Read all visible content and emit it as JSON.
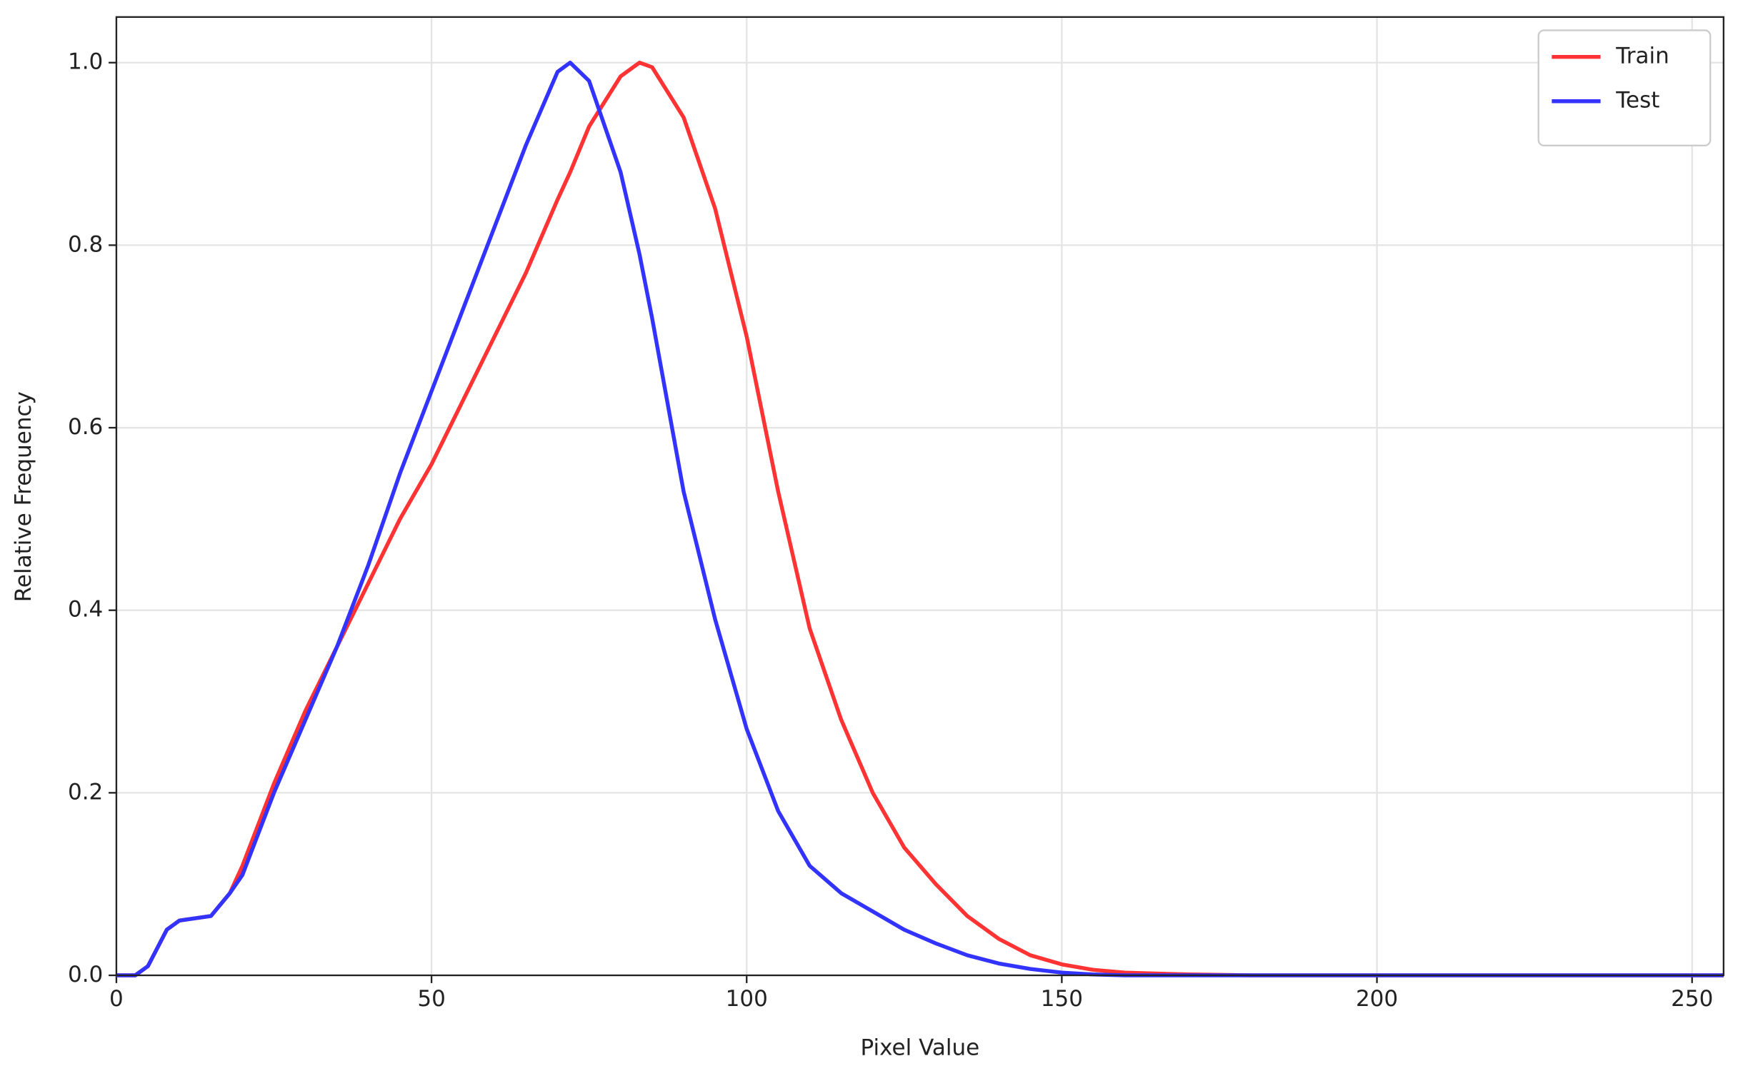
{
  "chart_data": {
    "type": "line",
    "x_label": "Pixel Value",
    "y_label": "Relative Frequency",
    "x": [
      0,
      3,
      5,
      8,
      10,
      15,
      18,
      20,
      25,
      30,
      35,
      40,
      45,
      50,
      55,
      60,
      65,
      70,
      72,
      75,
      80,
      83,
      85,
      90,
      95,
      100,
      105,
      110,
      115,
      120,
      125,
      130,
      135,
      140,
      145,
      150,
      155,
      160,
      170,
      180,
      200,
      255
    ],
    "series": [
      {
        "name": "Train",
        "color": "#ff3333",
        "values": [
          0,
          0,
          0.01,
          0.05,
          0.06,
          0.065,
          0.09,
          0.12,
          0.21,
          0.29,
          0.36,
          0.43,
          0.5,
          0.56,
          0.63,
          0.7,
          0.77,
          0.85,
          0.88,
          0.93,
          0.985,
          1.0,
          0.995,
          0.94,
          0.84,
          0.7,
          0.53,
          0.38,
          0.28,
          0.2,
          0.14,
          0.1,
          0.065,
          0.04,
          0.022,
          0.012,
          0.006,
          0.003,
          0.001,
          0,
          0,
          0
        ]
      },
      {
        "name": "Test",
        "color": "#3333ff",
        "values": [
          0,
          0,
          0.01,
          0.05,
          0.06,
          0.065,
          0.09,
          0.11,
          0.2,
          0.28,
          0.36,
          0.45,
          0.55,
          0.64,
          0.73,
          0.82,
          0.91,
          0.99,
          1.0,
          0.98,
          0.88,
          0.79,
          0.72,
          0.53,
          0.39,
          0.27,
          0.18,
          0.12,
          0.09,
          0.07,
          0.05,
          0.035,
          0.022,
          0.013,
          0.007,
          0.003,
          0.001,
          0,
          0,
          0,
          0,
          0
        ]
      }
    ],
    "xlim": [
      0,
      255
    ],
    "ylim": [
      0,
      1.05
    ],
    "xticks": [
      0,
      50,
      100,
      150,
      200,
      250
    ],
    "yticks": [
      {
        "value": 0,
        "label": "0.0"
      },
      {
        "value": 0.2,
        "label": "0.2"
      },
      {
        "value": 0.4,
        "label": "0.4"
      },
      {
        "value": 0.6,
        "label": "0.6"
      },
      {
        "value": 0.8,
        "label": "0.8"
      },
      {
        "value": 1.0,
        "label": "1.0"
      }
    ],
    "grid": true,
    "legend": "upper right"
  }
}
